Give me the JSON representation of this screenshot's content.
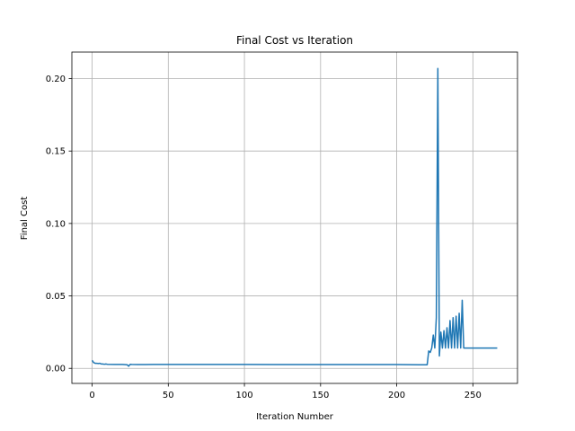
{
  "chart_data": {
    "type": "line",
    "title": "Final Cost vs Iteration",
    "xlabel": "Iteration Number",
    "ylabel": "Final Cost",
    "xlim": [
      -13.3,
      279.3
    ],
    "ylim": [
      -0.0104,
      0.2183
    ],
    "xticks": [
      0,
      50,
      100,
      150,
      200,
      250
    ],
    "yticks": [
      0.0,
      0.05,
      0.1,
      0.15,
      0.2
    ],
    "xtick_labels": [
      "0",
      "50",
      "100",
      "150",
      "200",
      "250"
    ],
    "ytick_labels": [
      "0.00",
      "0.05",
      "0.10",
      "0.15",
      "0.20"
    ],
    "grid": true,
    "line_color": "#1f77b4",
    "series": [
      {
        "x": [
          0,
          1,
          2,
          3,
          4,
          5,
          6,
          7,
          8,
          9,
          10,
          15,
          20,
          23,
          24,
          25,
          26,
          30,
          35,
          40,
          60,
          80,
          100,
          120,
          150,
          180,
          200,
          215,
          219,
          220,
          221,
          222,
          223,
          224,
          225,
          226,
          227,
          228,
          229,
          230,
          231,
          232,
          233,
          234,
          235,
          236,
          237,
          238,
          239,
          240,
          241,
          242,
          243,
          244,
          245,
          246,
          250,
          255,
          260,
          266
        ],
        "y": [
          0.0055,
          0.004,
          0.0035,
          0.0035,
          0.0033,
          0.0035,
          0.003,
          0.003,
          0.0028,
          0.003,
          0.0028,
          0.0027,
          0.0027,
          0.0025,
          0.0015,
          0.0028,
          0.0027,
          0.0026,
          0.0026,
          0.0027,
          0.0027,
          0.0027,
          0.0027,
          0.0026,
          0.0026,
          0.0026,
          0.0026,
          0.0025,
          0.0025,
          0.0025,
          0.012,
          0.011,
          0.014,
          0.023,
          0.014,
          0.035,
          0.207,
          0.0085,
          0.025,
          0.014,
          0.026,
          0.014,
          0.028,
          0.014,
          0.033,
          0.014,
          0.035,
          0.014,
          0.036,
          0.014,
          0.038,
          0.014,
          0.047,
          0.014,
          0.014,
          0.014,
          0.014,
          0.014,
          0.014,
          0.014
        ]
      }
    ]
  }
}
